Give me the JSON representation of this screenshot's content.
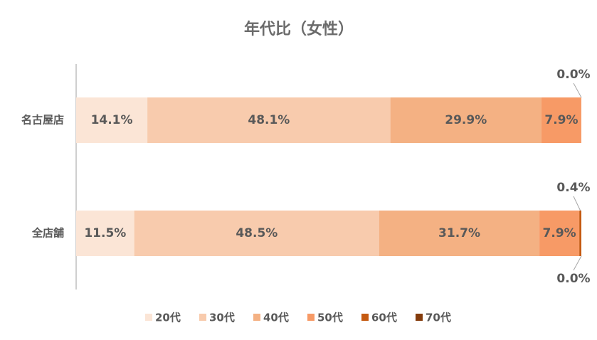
{
  "chart_data": {
    "type": "stacked-bar-horizontal",
    "title": "年代比（女性）",
    "categories": [
      "名古屋店",
      "全店舗"
    ],
    "xlim": [
      0,
      100
    ],
    "series": [
      {
        "name": "20代",
        "color": "#fbe5d6",
        "values": [
          14.1,
          11.5
        ],
        "value_labels": [
          "14.1%",
          "11.5%"
        ]
      },
      {
        "name": "30代",
        "color": "#f8cbad",
        "values": [
          48.1,
          48.5
        ],
        "value_labels": [
          "48.1%",
          "48.5%"
        ]
      },
      {
        "name": "40代",
        "color": "#f4b183",
        "values": [
          29.9,
          31.7
        ],
        "value_labels": [
          "29.9%",
          "31.7%"
        ]
      },
      {
        "name": "50代",
        "color": "#f79a66",
        "values": [
          7.9,
          7.9
        ],
        "value_labels": [
          "7.9%",
          "7.9%"
        ]
      },
      {
        "name": "60代",
        "color": "#c55a11",
        "values": [
          0.0,
          0.4
        ],
        "value_labels": [
          "0.0%",
          "0.4%"
        ]
      },
      {
        "name": "70代",
        "color": "#843c0c",
        "values": [
          0.0,
          0.0
        ],
        "value_labels": [
          null,
          "0.0%"
        ]
      }
    ]
  }
}
